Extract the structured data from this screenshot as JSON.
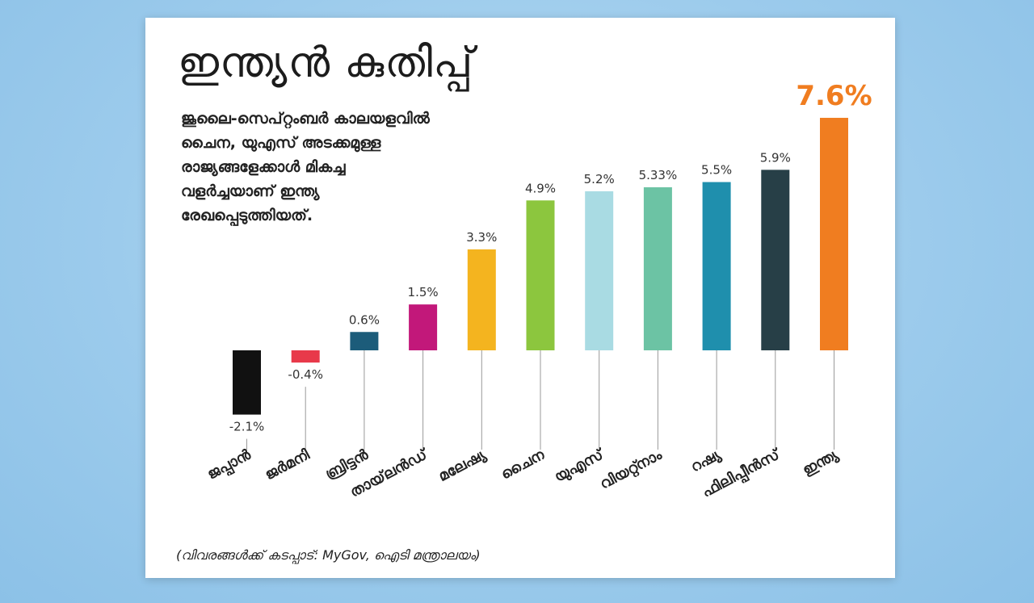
{
  "title": "ഇന്ത്യൻ കുതിപ്പ്",
  "subtitle_lines": [
    "ജൂലൈ-സെപ്റ്റംബർ കാലയളവിൽ",
    "ചൈന, യുഎസ് അടക്കമുള്ള",
    "രാജ്യങ്ങളേക്കാൾ മികച്ച",
    "വളർച്ചയാണ് ഇന്ത്യ",
    "രേഖപ്പെടുത്തിയത്."
  ],
  "footnote": "(വിവരങ്ങൾക്ക് കടപ്പാട്: MyGov, ഐടി മന്ത്രാലയം)",
  "chart_data": {
    "type": "bar",
    "title": "ഇന്ത്യൻ കുതിപ്പ്",
    "xlabel": "",
    "ylabel": "",
    "grid": false,
    "legend": "none",
    "unit": "%",
    "categories": [
      "ജപ്പാൻ",
      "ജർമനി",
      "ബ്രിട്ടൻ",
      "തായ്‌ലൻഡ്",
      "മലേഷ്യ",
      "ചൈന",
      "യുഎസ്",
      "വിയറ്റ്നാം",
      "റഷ്യ",
      "ഫിലിപ്പീൻസ്",
      "ഇന്ത്യ"
    ],
    "values": [
      -2.1,
      -0.4,
      0.6,
      1.5,
      3.3,
      4.9,
      5.2,
      5.33,
      5.5,
      5.9,
      7.6
    ],
    "value_labels": [
      "-2.1%",
      "-0.4%",
      "0.6%",
      "1.5%",
      "3.3%",
      "4.9%",
      "5.2%",
      "5.33%",
      "5.5%",
      "5.9%",
      "7.6%"
    ],
    "colors": [
      "#111111",
      "#e8394a",
      "#1c5c7a",
      "#c2187a",
      "#f4b41f",
      "#8cc63e",
      "#a9dbe3",
      "#6cc3a4",
      "#1f8fad",
      "#273f47",
      "#f07d20"
    ],
    "highlight_index": 10,
    "ylim": [
      -2.1,
      7.6
    ]
  }
}
